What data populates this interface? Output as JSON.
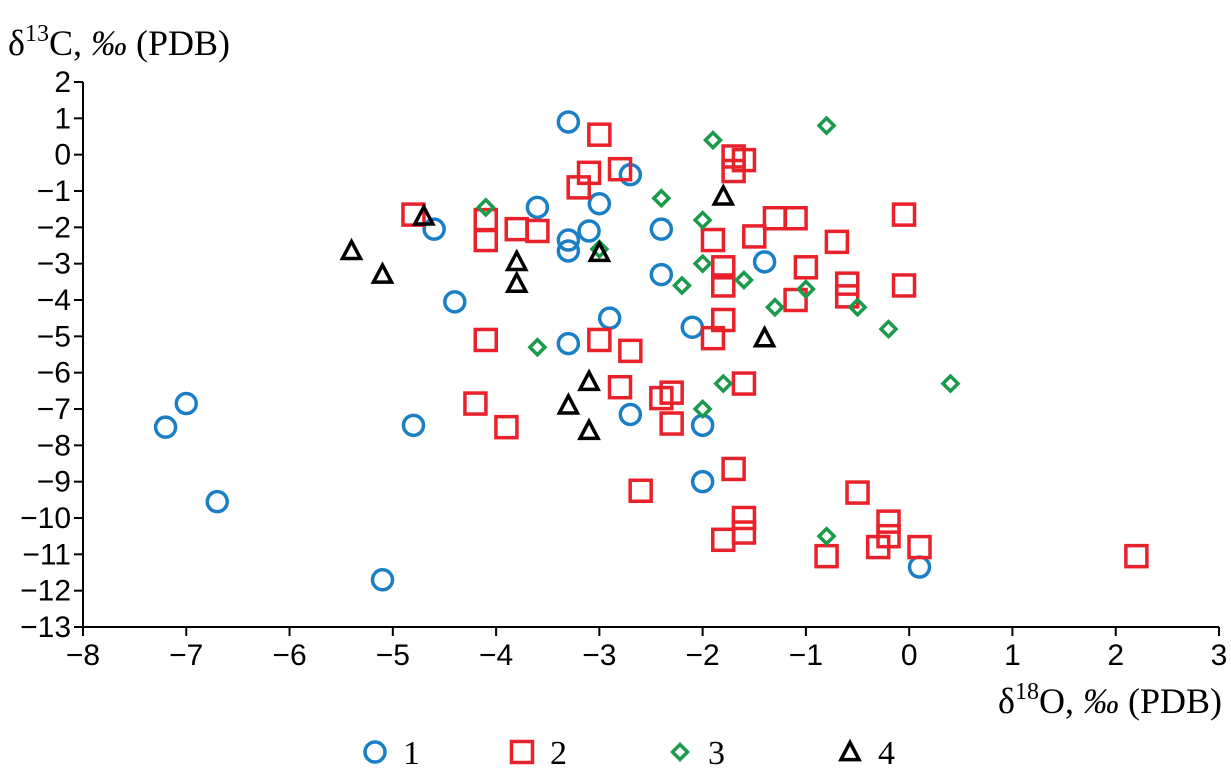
{
  "chart_data": {
    "type": "scatter",
    "title": "",
    "ylabel": {
      "prefix": "δ",
      "sup": "13",
      "main": "C, ",
      "unit": "‰",
      "suffix": " (PDB)"
    },
    "xlabel": {
      "prefix": "δ",
      "sup": "18",
      "main": "O, ",
      "unit": "‰",
      "suffix": " (PDB)"
    },
    "xlim": [
      -8,
      3
    ],
    "ylim": [
      -13,
      2
    ],
    "x_ticks": [
      -8,
      -7,
      -6,
      -5,
      -4,
      -3,
      -2,
      -1,
      0,
      1,
      2,
      3
    ],
    "x_tick_labels": [
      "−8",
      "−7",
      "−6",
      "−5",
      "−4",
      "−3",
      "−2",
      "−1",
      "0",
      "1",
      "2",
      "3"
    ],
    "y_ticks": [
      2,
      1,
      0,
      -1,
      -2,
      -3,
      -4,
      -5,
      -6,
      -7,
      -8,
      -9,
      -10,
      -11,
      -12,
      -13
    ],
    "y_tick_labels": [
      "2",
      "1",
      "0",
      "−1",
      "−2",
      "−3",
      "−4",
      "−5",
      "−6",
      "−7",
      "−8",
      "−9",
      "−10",
      "−11",
      "−12",
      "−13"
    ],
    "grid": false,
    "legend_position": "bottom",
    "series": [
      {
        "name": "1",
        "marker": "circle",
        "color": "#1a7fc4",
        "points": [
          [
            -3.3,
            0.9
          ],
          [
            -2.7,
            -0.55
          ],
          [
            -3.0,
            -1.35
          ],
          [
            -3.6,
            -1.45
          ],
          [
            -4.6,
            -2.05
          ],
          [
            -3.1,
            -2.1
          ],
          [
            -3.3,
            -2.35
          ],
          [
            -3.3,
            -2.65
          ],
          [
            -2.4,
            -2.05
          ],
          [
            -2.4,
            -3.3
          ],
          [
            -4.4,
            -4.05
          ],
          [
            -2.9,
            -4.5
          ],
          [
            -3.3,
            -5.2
          ],
          [
            -2.1,
            -4.75
          ],
          [
            -1.4,
            -2.95
          ],
          [
            -7.2,
            -7.5
          ],
          [
            -7.0,
            -6.85
          ],
          [
            -4.8,
            -7.45
          ],
          [
            -2.7,
            -7.15
          ],
          [
            -2.0,
            -7.45
          ],
          [
            -6.7,
            -9.55
          ],
          [
            -2.0,
            -9.0
          ],
          [
            -5.1,
            -11.7
          ],
          [
            0.1,
            -11.35
          ]
        ]
      },
      {
        "name": "2",
        "marker": "square",
        "color": "#e8212a",
        "points": [
          [
            -3.0,
            0.55
          ],
          [
            -1.7,
            -0.05
          ],
          [
            -1.6,
            -0.15
          ],
          [
            -1.7,
            -0.45
          ],
          [
            -3.1,
            -0.5
          ],
          [
            -2.8,
            -0.4
          ],
          [
            -3.2,
            -0.9
          ],
          [
            -4.8,
            -1.65
          ],
          [
            -4.1,
            -1.8
          ],
          [
            -4.1,
            -2.35
          ],
          [
            -3.8,
            -2.05
          ],
          [
            -3.6,
            -2.1
          ],
          [
            -1.9,
            -2.35
          ],
          [
            -1.5,
            -2.25
          ],
          [
            -1.3,
            -1.75
          ],
          [
            -1.1,
            -1.75
          ],
          [
            -0.7,
            -2.4
          ],
          [
            -0.05,
            -1.65
          ],
          [
            -1.8,
            -3.1
          ],
          [
            -1.8,
            -3.6
          ],
          [
            -1.0,
            -3.1
          ],
          [
            -1.1,
            -4.0
          ],
          [
            -0.6,
            -3.55
          ],
          [
            -0.6,
            -3.9
          ],
          [
            -0.05,
            -3.6
          ],
          [
            -4.1,
            -5.1
          ],
          [
            -3.0,
            -5.1
          ],
          [
            -2.7,
            -5.4
          ],
          [
            -1.8,
            -4.55
          ],
          [
            -1.9,
            -5.05
          ],
          [
            -2.8,
            -6.4
          ],
          [
            -2.4,
            -6.7
          ],
          [
            -2.3,
            -6.55
          ],
          [
            -2.3,
            -7.4
          ],
          [
            -1.6,
            -6.3
          ],
          [
            -4.2,
            -6.85
          ],
          [
            -3.9,
            -7.5
          ],
          [
            -2.6,
            -9.25
          ],
          [
            -1.7,
            -8.65
          ],
          [
            -1.8,
            -10.6
          ],
          [
            -1.6,
            -10.0
          ],
          [
            -1.6,
            -10.4
          ],
          [
            -0.8,
            -11.05
          ],
          [
            -0.5,
            -9.3
          ],
          [
            -0.3,
            -10.8
          ],
          [
            -0.2,
            -10.1
          ],
          [
            -0.2,
            -10.5
          ],
          [
            0.1,
            -10.8
          ],
          [
            2.2,
            -11.05
          ]
        ]
      },
      {
        "name": "3",
        "marker": "diamond",
        "color": "#1a9a4a",
        "points": [
          [
            -1.9,
            0.4
          ],
          [
            -0.8,
            0.8
          ],
          [
            -2.4,
            -1.2
          ],
          [
            -4.1,
            -1.45
          ],
          [
            -2.0,
            -1.8
          ],
          [
            -3.0,
            -2.6
          ],
          [
            -2.0,
            -3.0
          ],
          [
            -2.2,
            -3.6
          ],
          [
            -1.6,
            -3.45
          ],
          [
            -1.3,
            -4.2
          ],
          [
            -1.0,
            -3.7
          ],
          [
            -0.5,
            -4.2
          ],
          [
            -0.2,
            -4.8
          ],
          [
            -3.6,
            -5.3
          ],
          [
            -1.8,
            -6.3
          ],
          [
            0.4,
            -6.3
          ],
          [
            -2.0,
            -7.0
          ],
          [
            -0.8,
            -10.5
          ]
        ]
      },
      {
        "name": "4",
        "marker": "triangle",
        "color": "#000000",
        "points": [
          [
            -1.8,
            -1.15
          ],
          [
            -4.7,
            -1.7
          ],
          [
            -5.4,
            -2.65
          ],
          [
            -5.1,
            -3.3
          ],
          [
            -3.8,
            -2.95
          ],
          [
            -3.8,
            -3.55
          ],
          [
            -3.0,
            -2.7
          ],
          [
            -1.4,
            -5.05
          ],
          [
            -3.1,
            -6.25
          ],
          [
            -3.3,
            -6.9
          ],
          [
            -3.1,
            -7.6
          ]
        ]
      }
    ]
  }
}
